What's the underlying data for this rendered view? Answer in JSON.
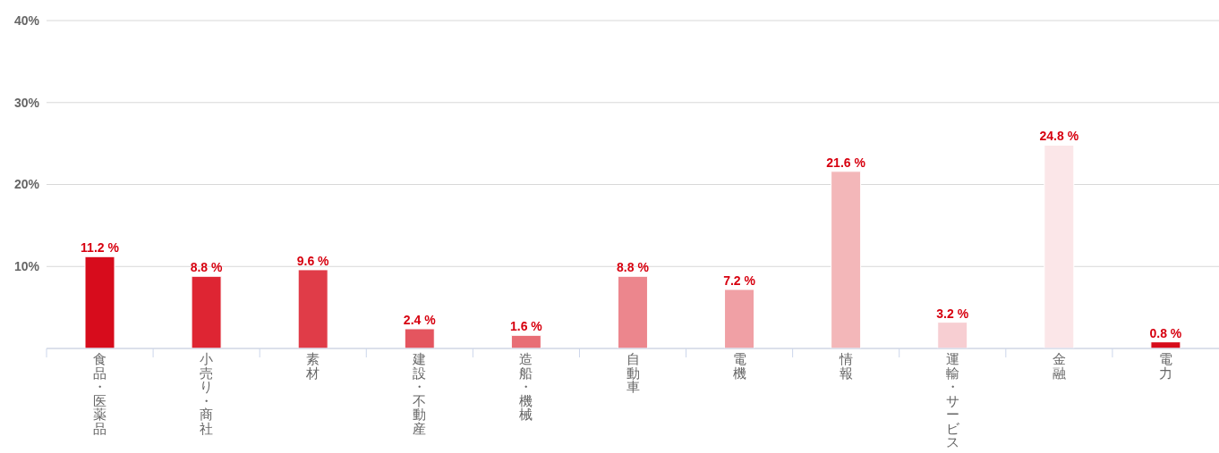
{
  "chart_data": {
    "type": "bar",
    "categories": [
      "食品・医薬品",
      "小売り・商社",
      "素材",
      "建設・不動産",
      "造船・機械",
      "自動車",
      "電機",
      "情報",
      "運輸・サービス",
      "金融",
      "電力"
    ],
    "values": [
      11.2,
      8.8,
      9.6,
      2.4,
      1.6,
      8.8,
      7.2,
      21.6,
      3.2,
      24.8,
      0.8
    ],
    "colors": [
      "#d70c1c",
      "#de2533",
      "#e03c48",
      "#e4555f",
      "#e86e76",
      "#ec868d",
      "#f0a0a5",
      "#f3b7b9",
      "#f7ced2",
      "#fbe6e8",
      "#d70c1c"
    ],
    "value_labels": [
      "11.2 %",
      "8.8 %",
      "9.6 %",
      "2.4 %",
      "1.6 %",
      "8.8 %",
      "7.2 %",
      "21.6 %",
      "3.2 %",
      "24.8 %",
      "0.8 %"
    ],
    "ylim": [
      0,
      40
    ],
    "yticks": [
      {
        "value": 10,
        "label": "10%"
      },
      {
        "value": 20,
        "label": "20%"
      },
      {
        "value": 30,
        "label": "30%"
      },
      {
        "value": 40,
        "label": "40%"
      }
    ],
    "grid": "y"
  }
}
